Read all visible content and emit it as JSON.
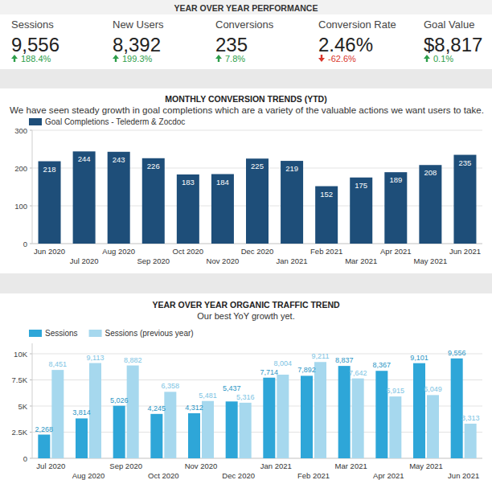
{
  "kpi": {
    "title": "YEAR OVER YEAR PERFORMANCE",
    "items": [
      {
        "label": "Sessions",
        "value": "9,556",
        "change": "188.4%",
        "direction": "up"
      },
      {
        "label": "New Users",
        "value": "8,392",
        "change": "199.3%",
        "direction": "up"
      },
      {
        "label": "Conversions",
        "value": "235",
        "change": "7.8%",
        "direction": "up"
      },
      {
        "label": "Conversion Rate",
        "value": "2.46%",
        "change": "-62.6%",
        "direction": "down"
      },
      {
        "label": "Goal Value",
        "value": "$8,817",
        "change": "0.1%",
        "direction": "up"
      }
    ]
  },
  "chart_data": [
    {
      "type": "bar",
      "title": "MONTHLY CONVERSION TRENDS (YTD)",
      "subtitle": "We have seen steady growth in goal completions which are a variety of the valuable actions we want users to take.",
      "categories": [
        "Jun 2020",
        "Jul 2020",
        "Aug 2020",
        "Sep 2020",
        "Oct 2020",
        "Nov 2020",
        "Dec 2020",
        "Jan 2021",
        "Feb 2021",
        "Mar 2021",
        "Apr 2021",
        "May 2021",
        "Jun 2021"
      ],
      "series": [
        {
          "name": "Goal Completions - Telederm & Zocdoc",
          "color": "#1e4e79",
          "values": [
            218,
            244,
            243,
            226,
            183,
            184,
            225,
            219,
            152,
            175,
            189,
            208,
            235
          ]
        }
      ],
      "ylim": [
        0,
        300
      ],
      "yticks": [
        0,
        100,
        200,
        300
      ],
      "grid": true,
      "data_labels": true,
      "legend": "top-left"
    },
    {
      "type": "bar",
      "title": "YEAR OVER YEAR ORGANIC TRAFFIC TREND",
      "subtitle": "Our best YoY growth yet.",
      "categories": [
        "Jul 2020",
        "Aug 2020",
        "Sep 2020",
        "Oct 2020",
        "Nov 2020",
        "Dec 2020",
        "Jan 2021",
        "Feb 2021",
        "Mar 2021",
        "Apr 2021",
        "May 2021",
        "Jun 2021"
      ],
      "series": [
        {
          "name": "Sessions",
          "color": "#2ea6d8",
          "values": [
            2268,
            3814,
            5026,
            4245,
            4312,
            5437,
            7714,
            7892,
            8837,
            8367,
            9101,
            9556
          ],
          "value_labels": [
            "2,268",
            "3,814",
            "5,026",
            "4,245",
            "4,312",
            "5,437",
            "7,714",
            "7,892",
            "8,837",
            "8,367",
            "9,101",
            "9,556"
          ]
        },
        {
          "name": "Sessions (previous year)",
          "color": "#a6d8ee",
          "values": [
            8451,
            9113,
            8882,
            6358,
            5481,
            5316,
            8004,
            9211,
            7642,
            5915,
            6049,
            3313
          ],
          "value_labels": [
            "8,451",
            "9,113",
            "8,882",
            "6,358",
            "5,481",
            "5,316",
            "8,004",
            "9,211",
            "7,642",
            "5,915",
            "6,049",
            "3,313"
          ]
        }
      ],
      "ylim": [
        0,
        11000
      ],
      "yticks": [
        0,
        {
          "value": 2500,
          "label": "2.5K"
        },
        {
          "value": 5000,
          "label": "5K"
        },
        {
          "value": 7500,
          "label": "7.5K"
        },
        {
          "value": 10000,
          "label": "10K"
        }
      ],
      "grid": true,
      "data_labels": true,
      "legend": "top-left"
    }
  ]
}
